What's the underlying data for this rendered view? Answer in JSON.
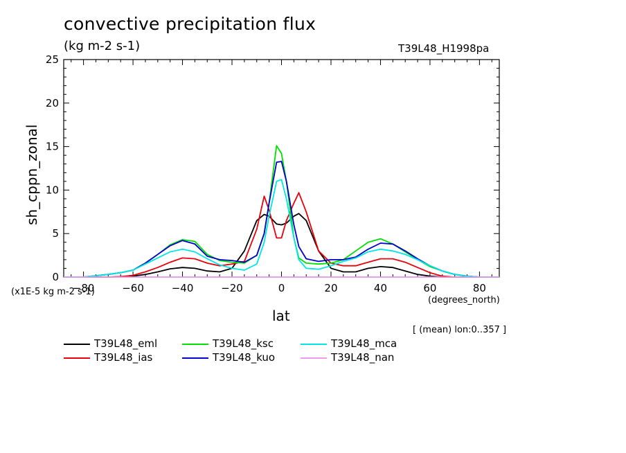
{
  "chart_data": {
    "type": "line",
    "title": "convective precipitation flux",
    "subtitle": "(kg m-2 s-1)",
    "run_label": "T39L48_H1998pa",
    "ylabel": "sh_cppn_zonal",
    "xlabel": "lat",
    "x_units": "(degrees_north)",
    "scale_note": "(x1E-5 kg m-2 s-1)",
    "mean_note": "[ (mean) lon:0..357 ]",
    "xlim": [
      -88,
      88
    ],
    "ylim": [
      0,
      25
    ],
    "x_ticks": [
      -80,
      -60,
      -40,
      -20,
      0,
      20,
      40,
      60,
      80
    ],
    "y_ticks": [
      0,
      5,
      10,
      15,
      20,
      25
    ],
    "x": [
      -88,
      -80,
      -75,
      -70,
      -65,
      -60,
      -55,
      -50,
      -45,
      -40,
      -35,
      -30,
      -25,
      -20,
      -15,
      -10,
      -7,
      -5,
      -2,
      0,
      2,
      5,
      7,
      10,
      15,
      20,
      25,
      30,
      35,
      40,
      45,
      50,
      55,
      60,
      65,
      70,
      75,
      80,
      85,
      88
    ],
    "series": [
      {
        "name": "T39L48_eml",
        "color": "#000000",
        "values": [
          0,
          0,
          0,
          0,
          0.05,
          0.1,
          0.3,
          0.6,
          0.95,
          1.1,
          1.0,
          0.7,
          0.6,
          1.0,
          3.0,
          6.5,
          7.2,
          7.0,
          6.1,
          6.0,
          6.2,
          7.0,
          7.3,
          6.5,
          3.0,
          1.0,
          0.6,
          0.6,
          1.0,
          1.2,
          1.1,
          0.7,
          0.3,
          0.1,
          0,
          0,
          0,
          0,
          0,
          0
        ]
      },
      {
        "name": "T39L48_ias",
        "color": "#e8000b",
        "values": [
          0,
          0,
          0,
          0,
          0.05,
          0.2,
          0.6,
          1.1,
          1.7,
          2.2,
          2.1,
          1.6,
          1.3,
          1.5,
          1.8,
          5.5,
          9.3,
          7.7,
          4.5,
          4.5,
          6.5,
          8.5,
          9.7,
          7.5,
          3.0,
          1.6,
          1.3,
          1.3,
          1.7,
          2.1,
          2.1,
          1.7,
          1.1,
          0.5,
          0.1,
          0,
          0,
          0,
          0,
          0
        ]
      },
      {
        "name": "T39L48_ksc",
        "color": "#00e000",
        "values": [
          0,
          0,
          0.15,
          0.3,
          0.5,
          0.8,
          1.6,
          2.6,
          3.7,
          4.3,
          4.1,
          2.6,
          1.9,
          1.7,
          1.6,
          2.5,
          5.0,
          8.5,
          15.1,
          14.2,
          11.0,
          4.5,
          2.2,
          1.6,
          1.5,
          1.6,
          2.0,
          3.0,
          4.0,
          4.4,
          3.8,
          2.9,
          2.0,
          1.2,
          0.7,
          0.3,
          0.1,
          0,
          0,
          0
        ]
      },
      {
        "name": "T39L48_kuo",
        "color": "#0000cc",
        "values": [
          0,
          0,
          0.15,
          0.3,
          0.5,
          0.8,
          1.6,
          2.6,
          3.6,
          4.2,
          3.8,
          2.4,
          2.0,
          1.9,
          1.7,
          2.5,
          5.0,
          8.5,
          13.2,
          13.3,
          11.0,
          6.0,
          3.5,
          2.1,
          1.8,
          2.0,
          2.0,
          2.3,
          3.2,
          3.9,
          3.8,
          3.0,
          2.1,
          1.3,
          0.7,
          0.3,
          0.1,
          0,
          0,
          0
        ]
      },
      {
        "name": "T39L48_mca",
        "color": "#00e5e5",
        "values": [
          0,
          0,
          0.15,
          0.3,
          0.5,
          0.8,
          1.5,
          2.2,
          2.9,
          3.2,
          2.9,
          2.1,
          1.4,
          1.0,
          0.8,
          1.5,
          4.0,
          7.0,
          11.0,
          11.2,
          9.0,
          4.5,
          2.0,
          1.0,
          0.9,
          1.3,
          1.8,
          2.2,
          2.9,
          3.2,
          3.0,
          2.6,
          2.0,
          1.3,
          0.7,
          0.3,
          0.1,
          0,
          0,
          0
        ]
      },
      {
        "name": "T39L48_nan",
        "color": "#ee99ee",
        "values": [
          0,
          0,
          0,
          0,
          0,
          0,
          0,
          0,
          0,
          0,
          0,
          0,
          0,
          0,
          0,
          0,
          0,
          0,
          0,
          0,
          0,
          0,
          0,
          0,
          0,
          0,
          0,
          0,
          0,
          0,
          0,
          0,
          0,
          0,
          0,
          0,
          0,
          0,
          0,
          0
        ]
      }
    ],
    "legend_placement": "bottom",
    "grid": false
  }
}
